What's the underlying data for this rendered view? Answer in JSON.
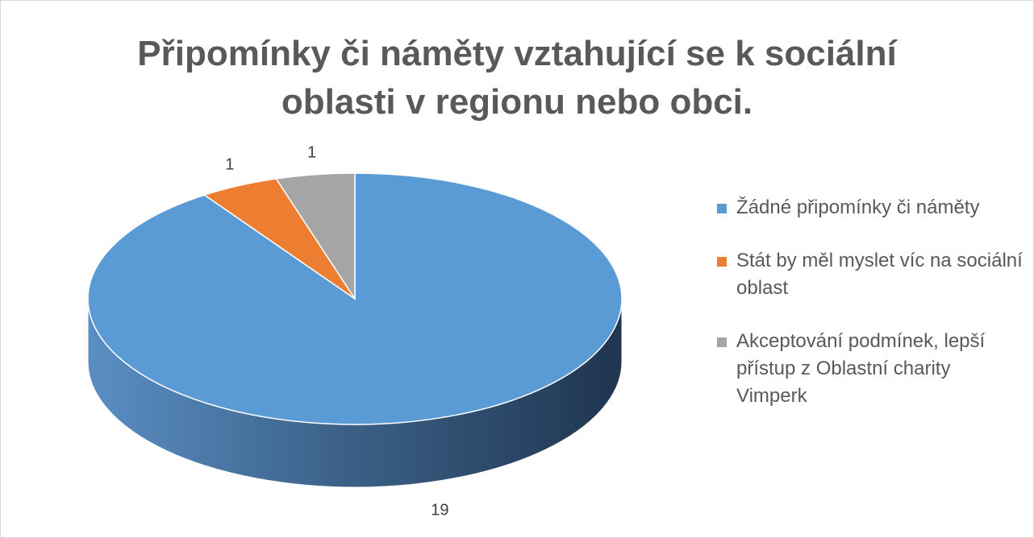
{
  "chart_data": {
    "type": "pie",
    "title": "Připomínky či náměty vztahující se k sociální oblasti v regionu nebo obci.",
    "categories": [
      "Žádné připomínky či náměty",
      "Stát by měl myslet víc na sociální oblast",
      "Akceptování podmínek, lepší přístup z Oblastní charity Vimperk"
    ],
    "values": [
      19,
      1,
      1
    ],
    "colors": [
      "#5b9bd5",
      "#ed7d31",
      "#a5a5a5"
    ],
    "legend": "right"
  }
}
